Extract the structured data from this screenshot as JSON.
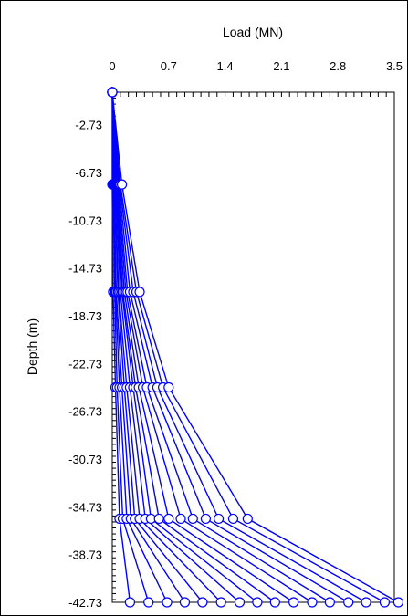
{
  "chart_data": {
    "type": "line",
    "title": "",
    "xlabel": "Load (MN)",
    "ylabel": "Depth (m)",
    "x_axis_position": "top",
    "xlim": [
      0,
      3.5
    ],
    "ylim": [
      -42.73,
      0
    ],
    "x_ticks": [
      0,
      0.7,
      1.4,
      2.1,
      2.8,
      3.5
    ],
    "x_tick_labels": [
      "0",
      "0.7",
      "1.4",
      "2.1",
      "2.8",
      "3.5"
    ],
    "y_ticks": [
      -2.73,
      -6.73,
      -10.73,
      -14.73,
      -18.73,
      -22.73,
      -26.73,
      -30.73,
      -34.73,
      -38.73,
      -42.73
    ],
    "y_tick_labels": [
      "-2.73",
      "-6.73",
      "-10.73",
      "-14.73",
      "-18.73",
      "-22.73",
      "-26.73",
      "-30.73",
      "-34.73",
      "-38.73",
      "-42.73"
    ],
    "grid": false,
    "legend": "none",
    "series_color": "#0000ff",
    "marker": "open-circle",
    "depths": [
      0,
      -7.73,
      -16.73,
      -24.73,
      -35.73,
      -42.73
    ],
    "series": [
      {
        "x": [
          0,
          0.0,
          0.01,
          0.04,
          0.09,
          0.22
        ]
      },
      {
        "x": [
          0,
          0.01,
          0.03,
          0.06,
          0.13,
          0.45
        ]
      },
      {
        "x": [
          0,
          0.02,
          0.04,
          0.09,
          0.18,
          0.68
        ]
      },
      {
        "x": [
          0,
          0.02,
          0.05,
          0.12,
          0.23,
          0.9
        ]
      },
      {
        "x": [
          0,
          0.03,
          0.07,
          0.15,
          0.28,
          1.12
        ]
      },
      {
        "x": [
          0,
          0.03,
          0.08,
          0.18,
          0.34,
          1.35
        ]
      },
      {
        "x": [
          0,
          0.04,
          0.1,
          0.22,
          0.41,
          1.58
        ]
      },
      {
        "x": [
          0,
          0.04,
          0.12,
          0.26,
          0.48,
          1.8
        ]
      },
      {
        "x": [
          0,
          0.05,
          0.13,
          0.29,
          0.58,
          2.02
        ]
      },
      {
        "x": [
          0,
          0.05,
          0.15,
          0.33,
          0.7,
          2.25
        ]
      },
      {
        "x": [
          0,
          0.06,
          0.17,
          0.38,
          0.85,
          2.48
        ]
      },
      {
        "x": [
          0,
          0.07,
          0.19,
          0.43,
          1.0,
          2.7
        ]
      },
      {
        "x": [
          0,
          0.08,
          0.22,
          0.5,
          1.16,
          2.93
        ]
      },
      {
        "x": [
          0,
          0.09,
          0.26,
          0.56,
          1.32,
          3.15
        ]
      },
      {
        "x": [
          0,
          0.1,
          0.3,
          0.63,
          1.5,
          3.38
        ]
      },
      {
        "x": [
          0,
          0.12,
          0.34,
          0.7,
          1.68,
          3.55
        ]
      }
    ]
  }
}
